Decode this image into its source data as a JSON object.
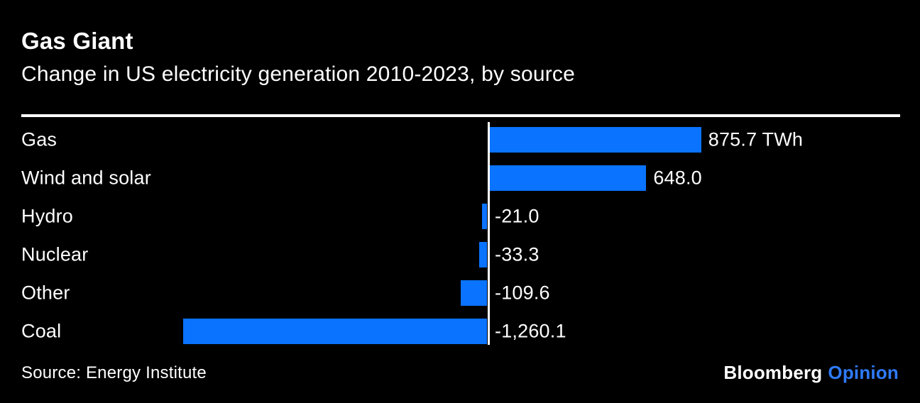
{
  "header": {
    "title": "Gas Giant",
    "subtitle": "Change in US electricity generation 2010-2023, by source"
  },
  "chart_data": {
    "type": "bar",
    "orientation": "horizontal",
    "title": "Gas Giant",
    "subtitle": "Change in US electricity generation 2010-2023, by source",
    "unit": "TWh",
    "categories": [
      "Gas",
      "Wind and solar",
      "Hydro",
      "Nuclear",
      "Other",
      "Coal"
    ],
    "values": [
      875.7,
      648.0,
      -21.0,
      -33.3,
      -109.6,
      -1260.1
    ],
    "value_labels": [
      "875.7 TWh",
      "648.0",
      "-21.0",
      "-33.3",
      "-109.6",
      "-1,260.1"
    ],
    "bar_color": "#0a73ff",
    "axis_range": [
      -1300,
      900
    ],
    "grid": false,
    "legend": false,
    "zero_line_color": "#ffffff"
  },
  "footer": {
    "source": "Source: Energy Institute",
    "brand": "Bloomberg",
    "brand_suffix": "Opinion",
    "brand_suffix_color": "#2f7af7"
  }
}
